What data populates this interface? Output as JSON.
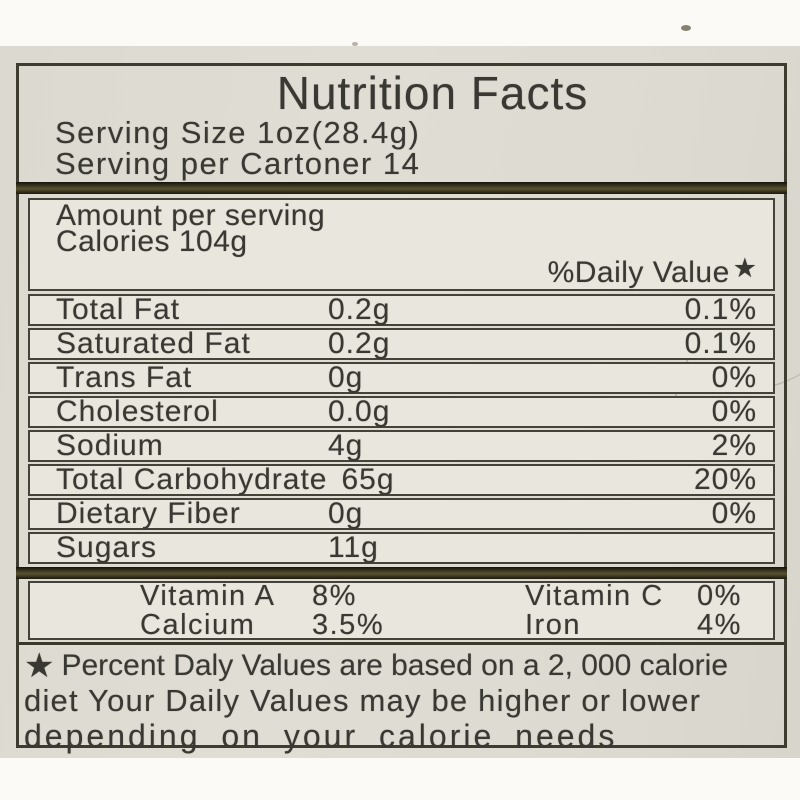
{
  "label": {
    "title": "Nutrition Facts",
    "serving_size": "Serving Size 1oz(28.4g)",
    "servings_per_carton": "Serving per Cartoner 14",
    "amount_per_serving": "Amount per serving",
    "calories": "Calories 104g",
    "daily_value_header": "%Daily Value",
    "star": "★",
    "nutrients": [
      {
        "name": "Total Fat",
        "amount": "0.2g",
        "dv": "0.1%"
      },
      {
        "name": "Saturated Fat",
        "amount": "0.2g",
        "dv": "0.1%"
      },
      {
        "name": "Trans Fat",
        "amount": "0g",
        "dv": "0%"
      },
      {
        "name": "Cholesterol",
        "amount": "0.0g",
        "dv": "0%"
      },
      {
        "name": "Sodium",
        "amount": "4g",
        "dv": "2%"
      },
      {
        "name": "Total Carbohydrate",
        "amount": "65g",
        "dv": "20%"
      },
      {
        "name": "Dietary Fiber",
        "amount": "0g",
        "dv": "0%"
      },
      {
        "name": "Sugars",
        "amount": "11g",
        "dv": ""
      }
    ],
    "micronutrients": [
      {
        "name": "Vitamin A",
        "value": "8%"
      },
      {
        "name": "Vitamin  C",
        "value": "0%"
      },
      {
        "name": "Calcium",
        "value": "3.5%"
      },
      {
        "name": "Iron",
        "value": "4%"
      }
    ],
    "footnote": {
      "star": "★",
      "line1": "Percent Daly Values are based on a 2, 000 calorie",
      "line2": "diet Your Daily Values may be higher or lower",
      "line3": "depending on your calorie needs"
    },
    "colors": {
      "photo_background": "#fbfaf6",
      "label_background": "#dedcd2",
      "box_background": "#e9e7dd",
      "separator_bar": "#2f2b1c",
      "border": "#45423a",
      "text": "#3a3832"
    }
  }
}
